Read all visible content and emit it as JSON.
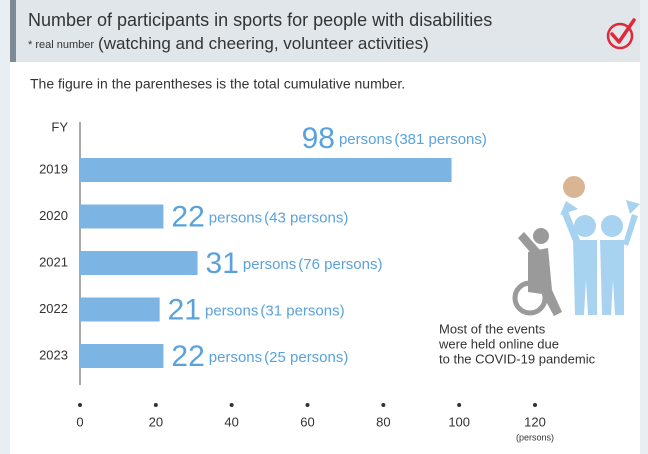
{
  "chart_data": {
    "type": "bar",
    "orientation": "horizontal",
    "title": "Number of participants in sports for people with disabilities",
    "subtitle_note": "* real number",
    "subtitle": "(watching and cheering, volunteer activities)",
    "note": "The figure in the parentheses is the total cumulative number.",
    "ylabel": "FY",
    "xlabel": "(persons)",
    "categories": [
      "2019",
      "2020",
      "2021",
      "2022",
      "2023"
    ],
    "values": [
      98,
      22,
      31,
      21,
      22
    ],
    "unit": "persons",
    "cumulative_labels": [
      "(381 persons)",
      "(43 persons)",
      "(76 persons)",
      "(31 persons)",
      "(25 persons)"
    ],
    "color": "#7cb5e3",
    "label_color": "#5aa2dc",
    "xlim": [
      0,
      120
    ],
    "xticks": [
      0,
      20,
      40,
      60,
      80,
      100,
      120
    ],
    "annotation": [
      "Most of the events",
      "were held online due",
      "to the COVID-19 pandemic"
    ]
  }
}
